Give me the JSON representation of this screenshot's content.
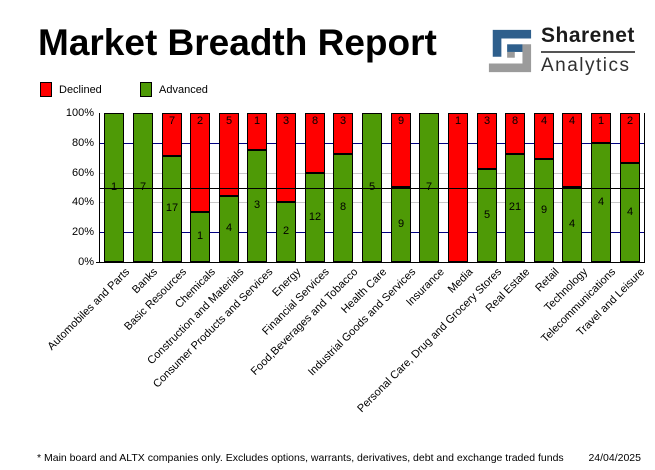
{
  "header": {
    "title": "Market Breadth Report",
    "logo_line1": "Sharenet",
    "logo_line2": "Analytics",
    "logo_blue": "#2E5F8C",
    "logo_gray": "#9B9B9B"
  },
  "legend": [
    {
      "label": "Declined",
      "color": "#FF0000"
    },
    {
      "label": "Advanced",
      "color": "#4E9A06"
    }
  ],
  "chart_data": {
    "type": "bar",
    "stacked": true,
    "value_mode": "percent_stacked",
    "title": "Market Breadth Report",
    "xlabel": "",
    "ylabel": "",
    "ylim": [
      0,
      100
    ],
    "y_ticks": [
      "0%",
      "20%",
      "40%",
      "60%",
      "80%",
      "100%"
    ],
    "legend_position": "top-left",
    "categories": [
      "Automobiles and Parts",
      "Banks",
      "Basic Resources",
      "Chemicals",
      "Construction and Materials",
      "Consumer Products and Services",
      "Energy",
      "Financial Services",
      "Food,Beverages and Tobacco",
      "Health Care",
      "Industrial Goods and Services",
      "Insurance",
      "Media",
      "Personal Care, Drug and Grocery Stores",
      "Real Estate",
      "Retail",
      "Technology",
      "Telecommunications",
      "Travel and Leisure"
    ],
    "series": [
      {
        "name": "Advanced",
        "color": "#4E9A06",
        "values": [
          1,
          7,
          17,
          1,
          4,
          3,
          2,
          12,
          8,
          5,
          9,
          7,
          0,
          5,
          21,
          9,
          4,
          4,
          4
        ]
      },
      {
        "name": "Declined",
        "color": "#FF0000",
        "values": [
          0,
          0,
          7,
          2,
          5,
          1,
          3,
          8,
          3,
          0,
          9,
          0,
          1,
          3,
          8,
          4,
          4,
          1,
          2
        ]
      }
    ],
    "gridlines": [
      {
        "pct": 20,
        "color": "#000080"
      },
      {
        "pct": 40,
        "color": "#C8C8C8"
      },
      {
        "pct": 60,
        "color": "#C8C8C8"
      },
      {
        "pct": 80,
        "color": "#000080"
      }
    ],
    "reference_line": {
      "pct": 50,
      "color": "#000000"
    }
  },
  "footer": {
    "note": "* Main board and ALTX companies only. Excludes options, warrants, derivatives, debt and exchange traded funds",
    "date": "24/04/2025"
  }
}
